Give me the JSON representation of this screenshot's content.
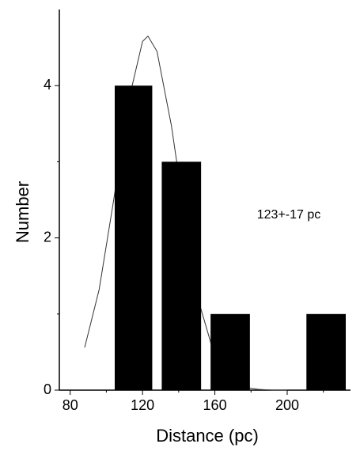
{
  "chart_data": {
    "type": "histogram",
    "xlabel": "Distance (pc)",
    "ylabel": "Number",
    "annotation": "123+-17 pc",
    "bins": [
      102,
      128,
      155,
      182,
      208,
      235
    ],
    "values": [
      4,
      3,
      1,
      0,
      1
    ],
    "color": "#000000",
    "fit": {
      "x": [
        88,
        96,
        104,
        112,
        120,
        123,
        128,
        136,
        144,
        152,
        160,
        168,
        176,
        184,
        192,
        200
      ],
      "values": [
        0.56,
        1.32,
        2.49,
        3.77,
        4.58,
        4.65,
        4.45,
        3.47,
        2.17,
        1.09,
        0.44,
        0.14,
        0.04,
        0.01,
        0,
        0
      ],
      "color": "#333333"
    },
    "xlim": [
      74,
      235
    ],
    "ylim": [
      0,
      5
    ],
    "xticks": [
      80,
      120,
      160,
      200
    ],
    "xminor": [
      100,
      140,
      180,
      220
    ],
    "yticks": [
      0,
      2,
      4
    ],
    "yminor": [
      1,
      3
    ]
  }
}
